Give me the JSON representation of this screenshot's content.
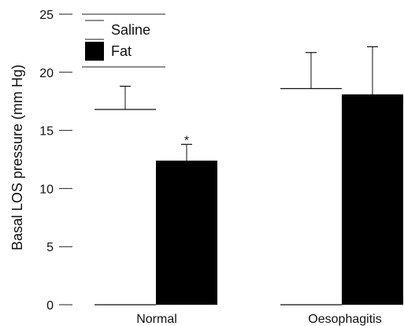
{
  "chart_data": {
    "type": "bar",
    "ylabel": "Basal LOS pressure (mm Hg)",
    "xlabel": "",
    "ylim": [
      0,
      25
    ],
    "yticks": [
      0,
      5,
      10,
      15,
      20,
      25
    ],
    "grid": false,
    "legend_position": "top-left",
    "categories": [
      "Normal",
      "Oesophagitis"
    ],
    "series": [
      {
        "name": "Saline",
        "color": "#ffffff",
        "values": [
          16.8,
          18.6
        ],
        "error": [
          2.0,
          3.1
        ]
      },
      {
        "name": "Fat",
        "color": "#000000",
        "values": [
          12.4,
          18.1
        ],
        "error": [
          1.4,
          4.1
        ]
      }
    ],
    "annotations": [
      {
        "text": "*",
        "category": "Normal",
        "series": "Fat"
      }
    ]
  }
}
